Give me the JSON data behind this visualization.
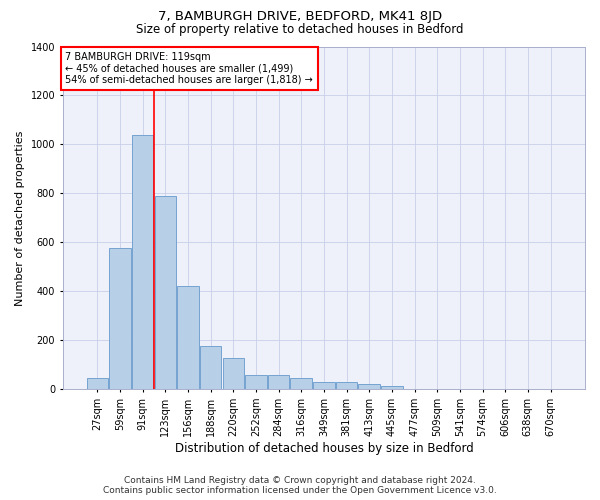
{
  "title": "7, BAMBURGH DRIVE, BEDFORD, MK41 8JD",
  "subtitle": "Size of property relative to detached houses in Bedford",
  "xlabel": "Distribution of detached houses by size in Bedford",
  "ylabel": "Number of detached properties",
  "categories": [
    "27sqm",
    "59sqm",
    "91sqm",
    "123sqm",
    "156sqm",
    "188sqm",
    "220sqm",
    "252sqm",
    "284sqm",
    "316sqm",
    "349sqm",
    "381sqm",
    "413sqm",
    "445sqm",
    "477sqm",
    "509sqm",
    "541sqm",
    "574sqm",
    "606sqm",
    "638sqm",
    "670sqm"
  ],
  "values": [
    47,
    577,
    1040,
    790,
    422,
    175,
    128,
    60,
    57,
    45,
    30,
    28,
    20,
    13,
    0,
    0,
    0,
    0,
    0,
    0,
    0
  ],
  "bar_color": "#b8cfe8",
  "bar_edge_color": "#6699cc",
  "vline_x": 2.5,
  "vline_color": "red",
  "ylim": [
    0,
    1400
  ],
  "yticks": [
    0,
    200,
    400,
    600,
    800,
    1000,
    1200,
    1400
  ],
  "annotation_text": "7 BAMBURGH DRIVE: 119sqm\n← 45% of detached houses are smaller (1,499)\n54% of semi-detached houses are larger (1,818) →",
  "annotation_box_color": "white",
  "annotation_box_edge_color": "red",
  "footer_line1": "Contains HM Land Registry data © Crown copyright and database right 2024.",
  "footer_line2": "Contains public sector information licensed under the Open Government Licence v3.0.",
  "bg_color": "#eef1fa",
  "grid_color": "#c8cfe8",
  "title_fontsize": 9.5,
  "subtitle_fontsize": 8.5,
  "ylabel_fontsize": 8,
  "xlabel_fontsize": 8.5,
  "tick_fontsize": 7,
  "annotation_fontsize": 7,
  "footer_fontsize": 6.5
}
